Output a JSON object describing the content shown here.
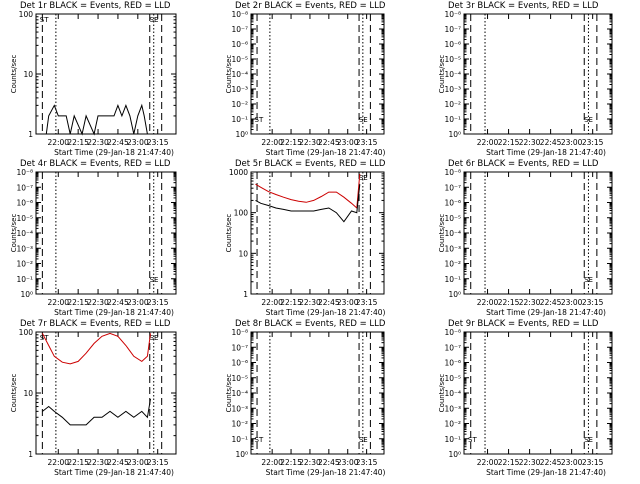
{
  "time_axis": {
    "ticks": [
      "22:00",
      "22:15",
      "22:30",
      "22:45",
      "23:00",
      "23:15"
    ],
    "xlabel": "Start Time (29-Jan-18 21:47:40)"
  },
  "ylabel": "Counts/sec",
  "chart_data": [
    {
      "type": "line",
      "title": "Det 1r BLACK = Events, RED = LLD",
      "scale": "log",
      "ylim": [
        1,
        100
      ],
      "yticks": [
        "1",
        "10",
        "100"
      ],
      "series": [
        {
          "color": "#000000",
          "x": [
            21.72,
            21.85,
            21.88,
            21.95,
            22.0,
            22.1,
            22.15,
            22.2,
            22.3,
            22.35,
            22.45,
            22.5,
            22.6,
            22.7,
            22.75,
            22.8,
            22.85,
            22.9,
            22.95,
            23.0,
            23.05,
            23.08,
            23.12,
            23.16
          ],
          "y": [
            1,
            1,
            2,
            3,
            2,
            2,
            1,
            2,
            1,
            2,
            1,
            2,
            2,
            2,
            3,
            2,
            3,
            2,
            1,
            2,
            3,
            2,
            1,
            1
          ]
        }
      ],
      "marks": {
        "solid": [
          21.8,
          23.15
        ],
        "dotted": [
          21.97,
          23.22
        ],
        "dashed": [
          21.8,
          23.15,
          23.3
        ],
        "labels": [
          "ST",
          "SE"
        ]
      }
    },
    {
      "type": "line",
      "title": "Det 2r BLACK = Events, RED = LLD",
      "scale": "log",
      "ylim": [
        1,
        1e-08
      ],
      "yticks": [
        "10⁰",
        "10⁻¹",
        "10⁻²",
        "10⁻³",
        "10⁻⁴",
        "10⁻⁵",
        "10⁻⁶",
        "10⁻⁷",
        "10⁻⁸"
      ],
      "series": [],
      "marks": {
        "labels": [
          "ST",
          "SE"
        ]
      }
    },
    {
      "type": "line",
      "title": "Det 3r BLACK = Events, RED = LLD",
      "scale": "log",
      "ylim": [
        1,
        1e-08
      ],
      "yticks": [
        "10⁰",
        "10⁻¹",
        "10⁻²",
        "10⁻³",
        "10⁻⁴",
        "10⁻⁵",
        "10⁻⁶",
        "10⁻⁷",
        "10⁻⁸"
      ],
      "series": [],
      "marks": {
        "labels": [
          "SE"
        ]
      }
    },
    {
      "type": "line",
      "title": "Det 4r BLACK = Events, RED = LLD",
      "scale": "log",
      "ylim": [
        1,
        1e-08
      ],
      "yticks": [
        "10⁰",
        "10⁻¹",
        "10⁻²",
        "10⁻³",
        "10⁻⁴",
        "10⁻⁵",
        "10⁻⁶",
        "10⁻⁷",
        "10⁻⁸"
      ],
      "series": [],
      "marks": {
        "labels": [
          "SE"
        ]
      }
    },
    {
      "type": "line",
      "title": "Det 5r BLACK = Events, RED = LLD",
      "scale": "log",
      "ylim": [
        1,
        1000
      ],
      "yticks": [
        "1",
        "10",
        "100",
        "1000"
      ],
      "series": [
        {
          "color": "#cc0000",
          "x": [
            21.78,
            21.85,
            21.95,
            22.05,
            22.15,
            22.25,
            22.35,
            22.45,
            22.55,
            22.65,
            22.75,
            22.85,
            22.95,
            23.05,
            23.12,
            23.16
          ],
          "y": [
            500,
            420,
            330,
            280,
            240,
            210,
            190,
            180,
            200,
            250,
            320,
            320,
            240,
            170,
            130,
            900
          ]
        },
        {
          "color": "#000000",
          "x": [
            21.78,
            21.85,
            21.95,
            22.05,
            22.15,
            22.25,
            22.35,
            22.45,
            22.55,
            22.65,
            22.75,
            22.85,
            22.95,
            23.05,
            23.12,
            23.16
          ],
          "y": [
            200,
            170,
            150,
            130,
            120,
            110,
            110,
            110,
            110,
            120,
            130,
            100,
            60,
            110,
            100,
            500
          ]
        }
      ],
      "marks": {
        "labels": [
          "SE"
        ]
      }
    },
    {
      "type": "line",
      "title": "Det 6r BLACK = Events, RED = LLD",
      "scale": "log",
      "ylim": [
        1,
        1e-08
      ],
      "yticks": [
        "10⁰",
        "10⁻¹",
        "10⁻²",
        "10⁻³",
        "10⁻⁴",
        "10⁻⁵",
        "10⁻⁶",
        "10⁻⁷",
        "10⁻⁸"
      ],
      "series": [],
      "marks": {
        "labels": [
          "SE"
        ]
      }
    },
    {
      "type": "line",
      "title": "Det 7r BLACK = Events, RED = LLD",
      "scale": "log",
      "ylim": [
        1,
        100
      ],
      "yticks": [
        "1",
        "10",
        "100"
      ],
      "series": [
        {
          "color": "#cc0000",
          "x": [
            21.8,
            21.88,
            21.95,
            22.05,
            22.15,
            22.25,
            22.35,
            22.45,
            22.55,
            22.65,
            22.75,
            22.85,
            22.95,
            23.05,
            23.12,
            23.16
          ],
          "y": [
            95,
            60,
            40,
            32,
            30,
            33,
            45,
            65,
            85,
            95,
            85,
            60,
            40,
            33,
            40,
            95
          ]
        },
        {
          "color": "#000000",
          "x": [
            21.8,
            21.88,
            21.95,
            22.05,
            22.15,
            22.25,
            22.35,
            22.45,
            22.55,
            22.65,
            22.75,
            22.85,
            22.95,
            23.05,
            23.12,
            23.16
          ],
          "y": [
            5,
            6,
            5,
            4,
            3,
            3,
            3,
            4,
            4,
            5,
            4,
            5,
            4,
            5,
            4,
            8
          ]
        }
      ],
      "marks": {
        "labels": [
          "ST",
          "SE"
        ]
      }
    },
    {
      "type": "line",
      "title": "Det 8r BLACK = Events, RED = LLD",
      "scale": "log",
      "ylim": [
        1,
        1e-08
      ],
      "yticks": [
        "10⁰",
        "10⁻¹",
        "10⁻²",
        "10⁻³",
        "10⁻⁴",
        "10⁻⁵",
        "10⁻⁶",
        "10⁻⁷",
        "10⁻⁸"
      ],
      "series": [],
      "marks": {
        "labels": [
          "ST",
          "SE"
        ]
      }
    },
    {
      "type": "line",
      "title": "Det 9r BLACK = Events, RED = LLD",
      "scale": "log",
      "ylim": [
        1,
        1e-08
      ],
      "yticks": [
        "10⁰",
        "10⁻¹",
        "10⁻²",
        "10⁻³",
        "10⁻⁴",
        "10⁻⁵",
        "10⁻⁶",
        "10⁻⁷",
        "10⁻⁸"
      ],
      "series": [],
      "marks": {
        "labels": [
          "ST",
          "SE"
        ]
      }
    }
  ]
}
